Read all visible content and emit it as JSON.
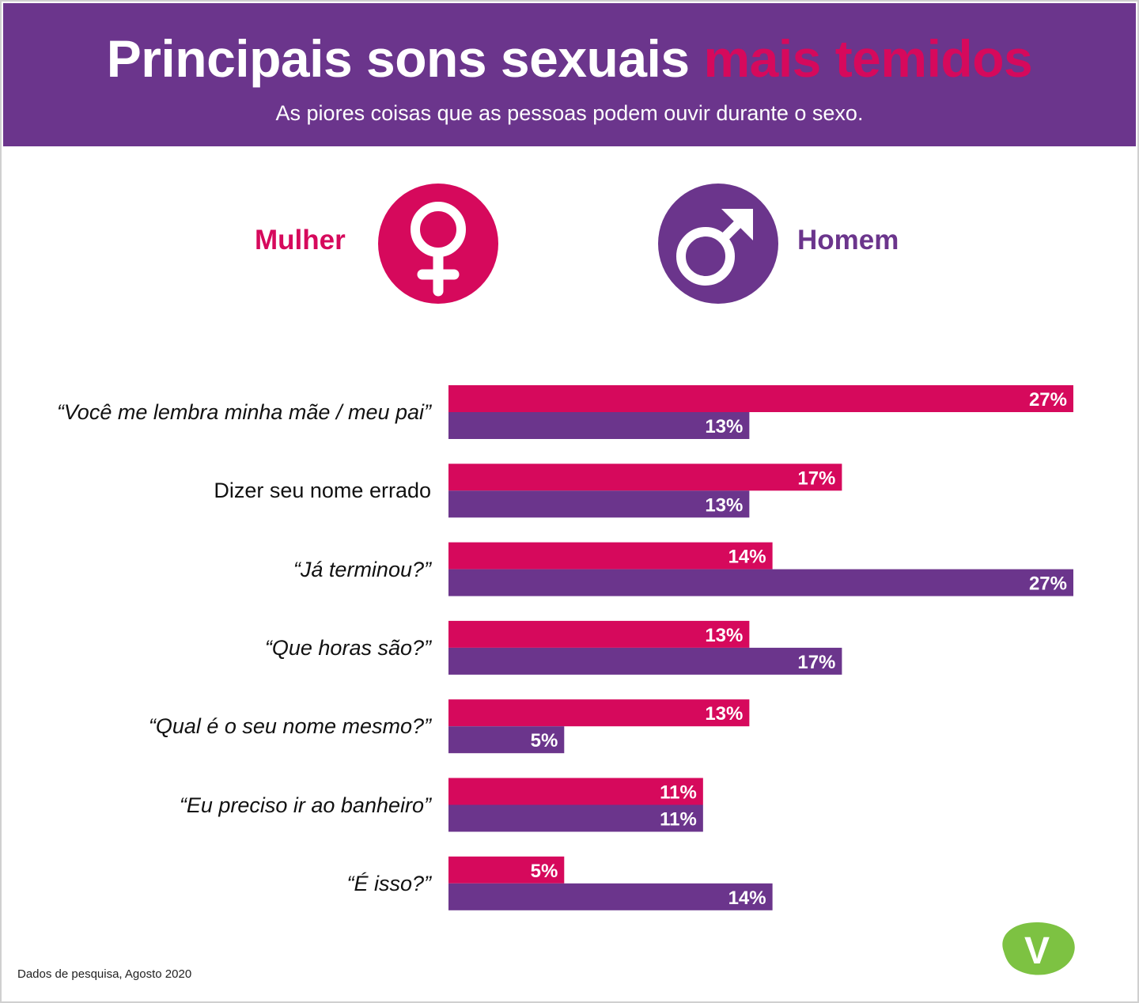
{
  "header": {
    "title_main": "Principais sons sexuais",
    "title_highlight": "mais temidos",
    "subtitle": "As piores coisas que as pessoas podem ouvir durante o sexo."
  },
  "legend": {
    "female_label": "Mulher",
    "male_label": "Homem",
    "female_icon": "female-symbol-icon",
    "male_icon": "male-symbol-icon"
  },
  "colors": {
    "purple": "#6b358c",
    "pink": "#d6095c",
    "logo_green": "#7dc242"
  },
  "chart_data": {
    "type": "bar",
    "orientation": "horizontal",
    "title": "Principais sons sexuais mais temidos",
    "unit": "%",
    "categories": [
      "“Você me lembra minha mãe / meu pai”",
      "Dizer seu nome errado",
      "“Já terminou?”",
      "“Que horas são?”",
      "“Qual é o seu nome mesmo?”",
      "“Eu preciso ir ao banheiro”",
      "“É isso?”"
    ],
    "italic": [
      true,
      false,
      true,
      true,
      true,
      true,
      true
    ],
    "series": [
      {
        "name": "Mulher",
        "color": "#d6095c",
        "values": [
          27,
          17,
          14,
          13,
          13,
          11,
          5
        ]
      },
      {
        "name": "Homem",
        "color": "#6b358c",
        "values": [
          13,
          13,
          27,
          17,
          5,
          11,
          14
        ]
      }
    ],
    "xlim": [
      0,
      27
    ],
    "grid": false,
    "legend": "top"
  },
  "footer": {
    "source": "Dados de pesquisa, Agosto 2020",
    "logo_letter": "V"
  }
}
